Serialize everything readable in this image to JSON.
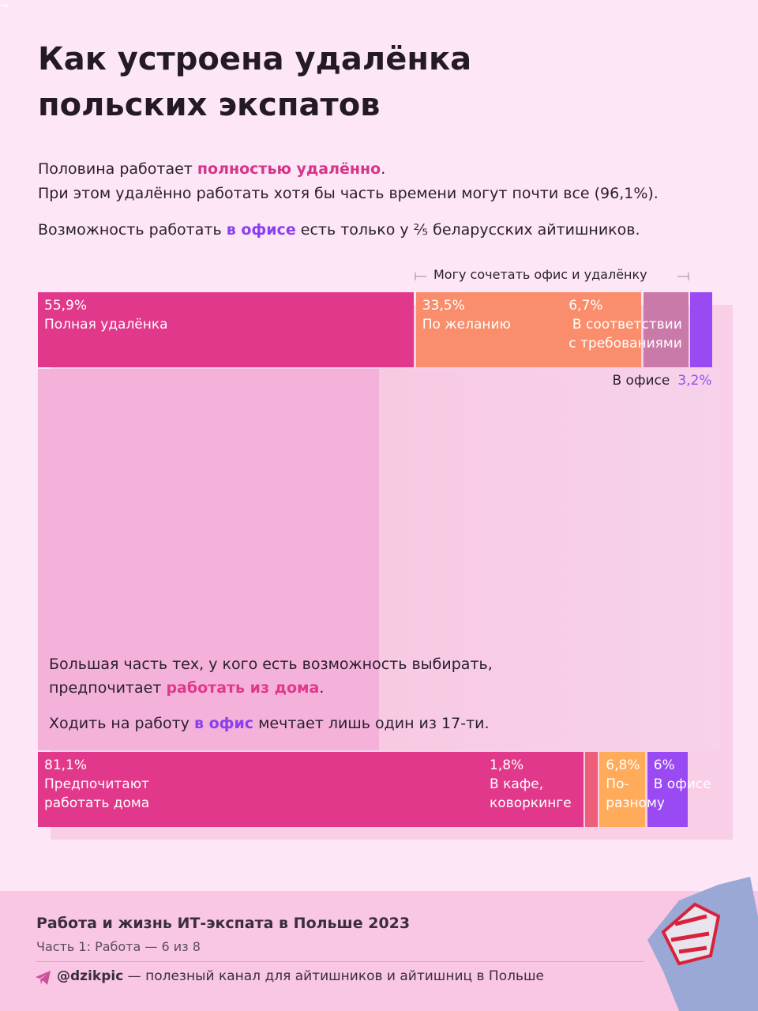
{
  "header": {
    "title": [
      "Как устроена удалёнка",
      "польских экспатов"
    ]
  },
  "intro": [
    [
      {
        "text": "Половина работает "
      },
      {
        "text": "полностью удалённо",
        "color": "#d6338a"
      },
      {
        "text": "."
      }
    ],
    [
      {
        "text": "При этом удалённо работать хотя бы часть времени могут почти все (96,1%)."
      }
    ],
    [
      {
        "text": "Возможность работать "
      },
      {
        "text": "в офисе",
        "color": "#8a3ff0"
      },
      {
        "text": " есть только у ⅖ беларусских айтишников."
      }
    ]
  ],
  "chart_data": {
    "type": "sankey",
    "annotation": "Могу сочетать офис и удалёнку",
    "top_nodes": [
      {
        "value": 55.9,
        "value_label": "55,9%",
        "label": [
          "Полная удалёнка"
        ],
        "color": "#e2388b"
      },
      {
        "value": 33.5,
        "value_label": "33,5%",
        "label": [
          "По желанию"
        ],
        "color": "#f98d6c"
      },
      {
        "value": 6.7,
        "value_label": "6,7%",
        "label": [
          "В соответствии",
          "с требованиями"
        ],
        "color": "#c97aa9"
      },
      {
        "value": 3.2,
        "value_label": "3,2%",
        "label": [
          "В офисе"
        ],
        "color": "#9a4af3"
      }
    ],
    "bottom_nodes": [
      {
        "value": 81.1,
        "value_label": "81,1%",
        "label": [
          "Предпочитают",
          "работать дома"
        ],
        "color": "#e2388b"
      },
      {
        "value": 1.8,
        "value_label": "1,8%",
        "label": [
          "В кафе,",
          "коворкинге"
        ],
        "color": "#ef5e78"
      },
      {
        "value": 6.8,
        "value_label": "6,8%",
        "label": [
          "По-",
          "разному"
        ],
        "color": "#ffab5a"
      },
      {
        "value": 6,
        "value_label": "6%",
        "label": [
          "В офисе"
        ],
        "color": "#9a4af3"
      }
    ],
    "notes": [
      [
        {
          "text": "Большая часть тех, у кого есть возможность выбирать,"
        }
      ],
      [
        {
          "text": "предпочитает "
        },
        {
          "text": "работать из дома",
          "color": "#e2388b"
        },
        {
          "text": "."
        }
      ],
      [
        {
          "text": "Ходить на работу "
        },
        {
          "text": "в офис",
          "color": "#8a3ff0"
        },
        {
          "text": " мечтает лишь один из 17-ти."
        }
      ]
    ]
  },
  "footer": {
    "title": "Работа и жизнь ИТ-экспата в Польше 2023",
    "subtitle": "Часть 1: Работа — 6 из 8",
    "handle": "@dzikpic",
    "text": " — полезный канал для айтишников и айтишниц в Польше"
  }
}
